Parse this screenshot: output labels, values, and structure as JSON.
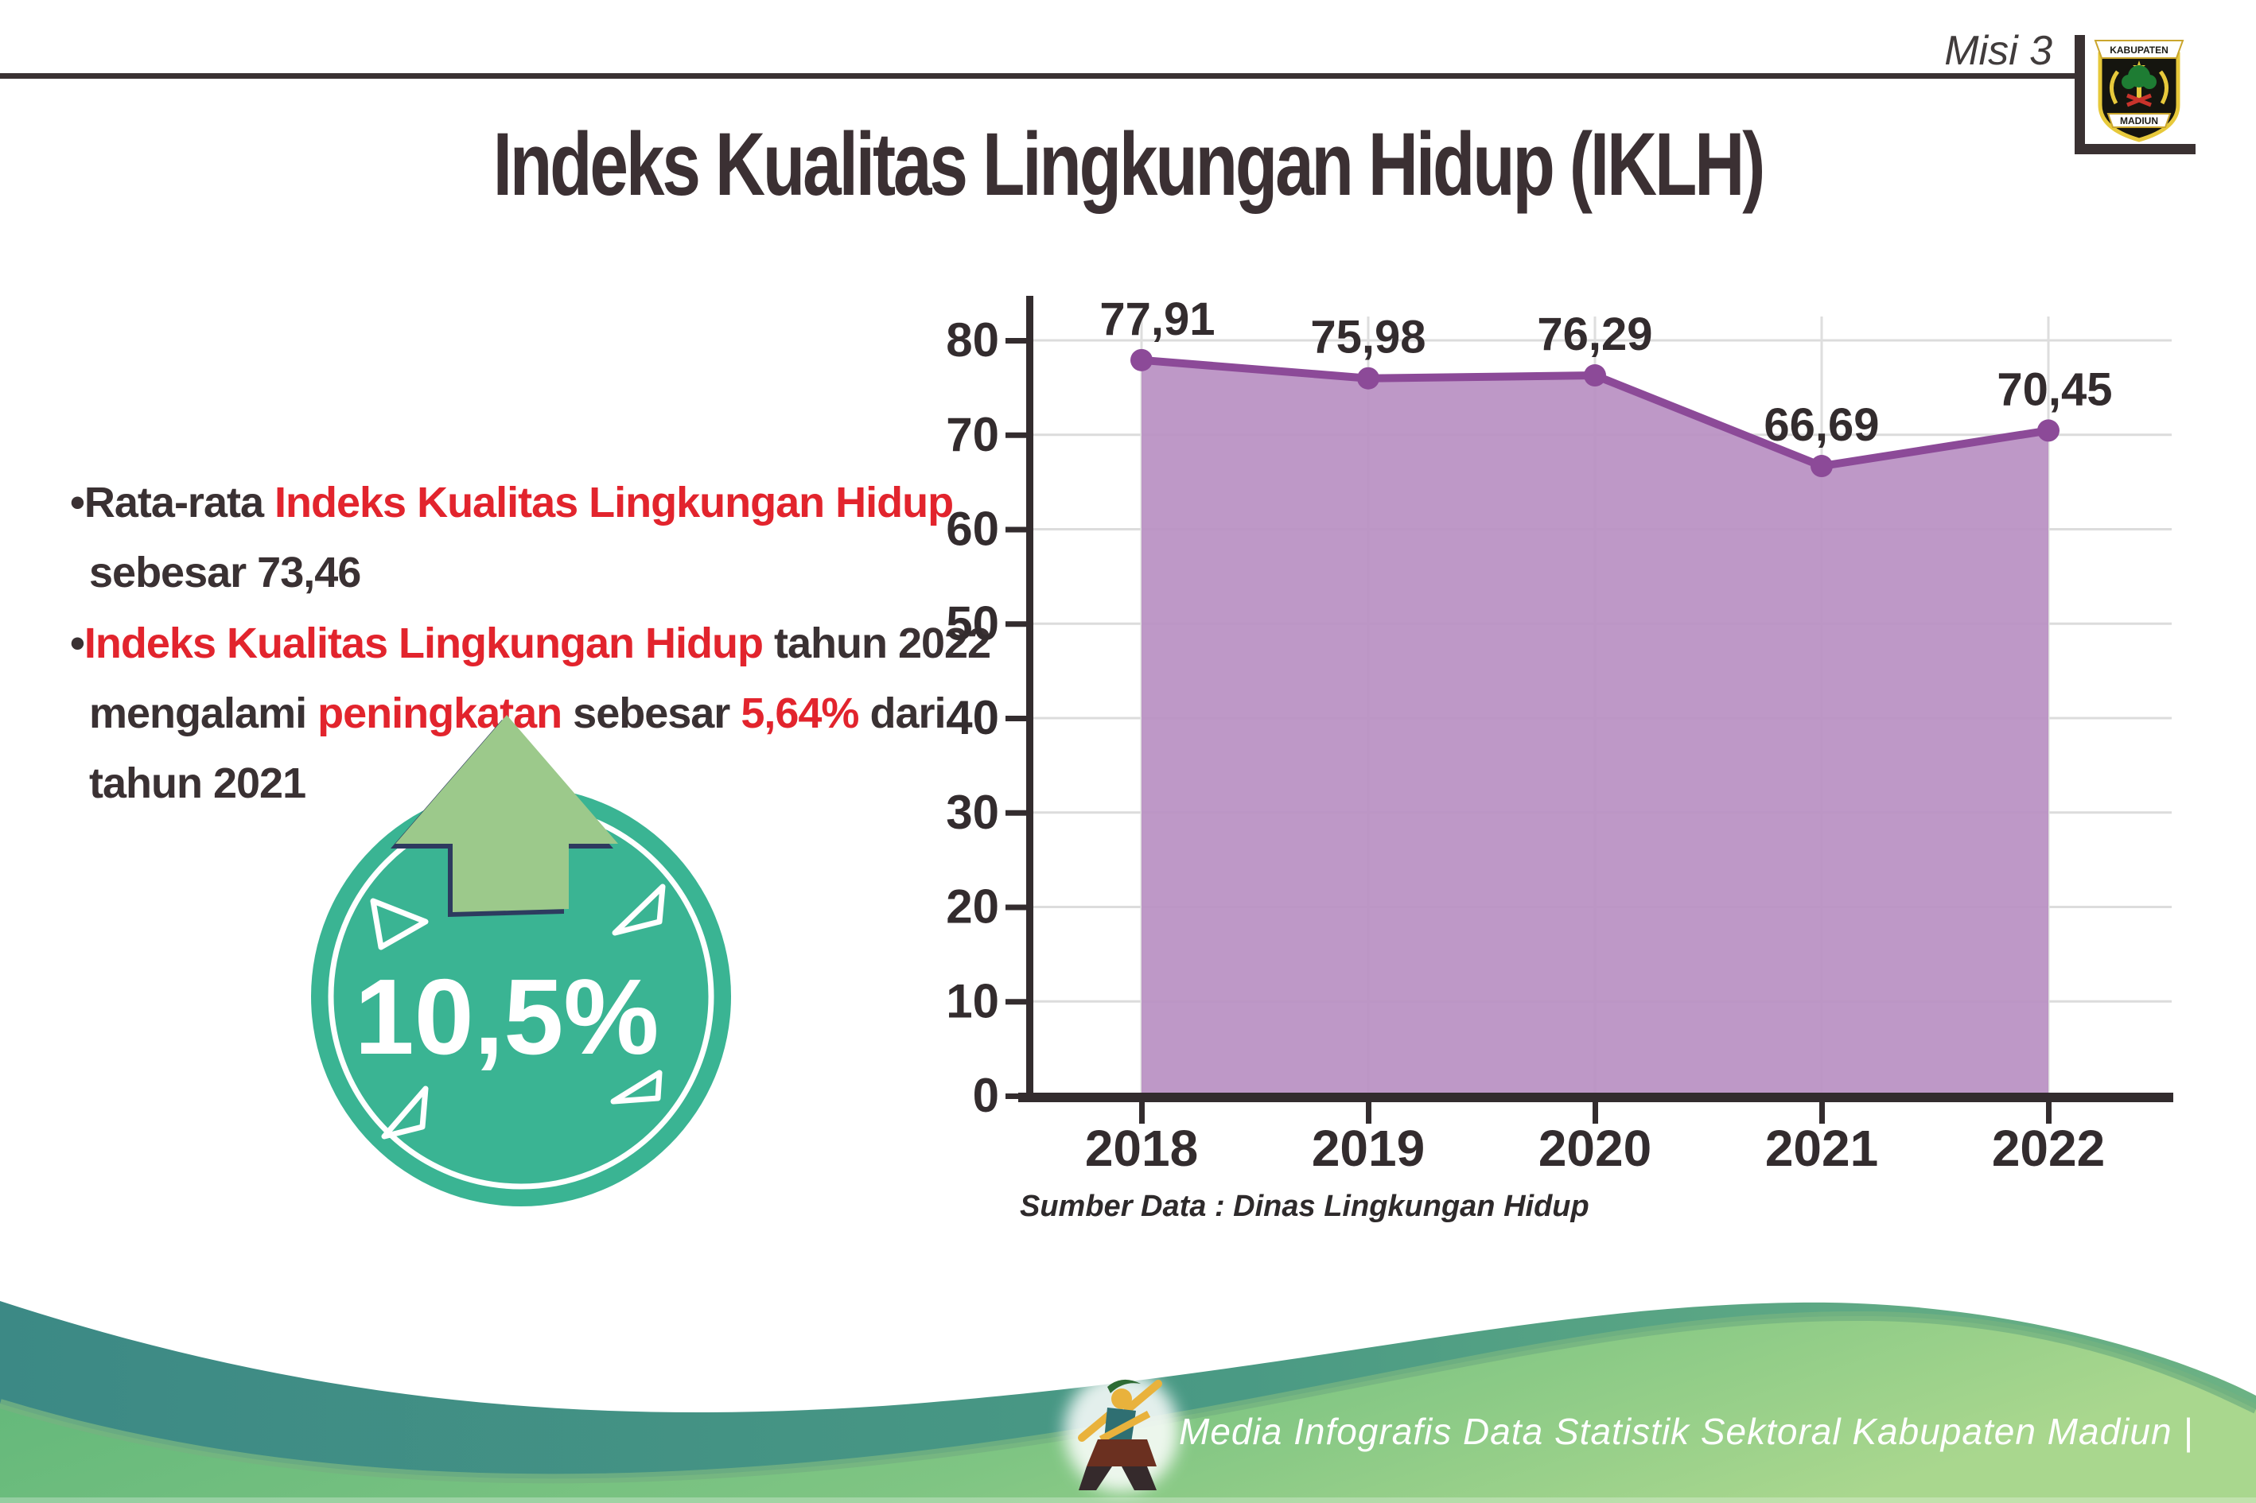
{
  "header": {
    "misi": "Misi 3",
    "logo": {
      "top": "KABUPATEN",
      "bottom": "MADIUN"
    }
  },
  "title": "Indeks Kualitas Lingkungan Hidup (IKLH)",
  "bullets": [
    {
      "bullet_char": "•",
      "lines": [
        [
          {
            "t": "Rata-rata ",
            "red": false
          },
          {
            "t": "Indeks Kualitas Lingkungan Hidup",
            "red": true
          }
        ],
        [
          {
            "t": "sebesar 73,46",
            "red": false
          }
        ]
      ]
    },
    {
      "bullet_char": "•",
      "lines": [
        [
          {
            "t": "Indeks Kualitas Lingkungan Hidup",
            "red": true
          },
          {
            "t": " tahun 2022",
            "red": false
          }
        ],
        [
          {
            "t": "mengalami ",
            "red": false
          },
          {
            "t": "peningkatan",
            "red": true
          },
          {
            "t": " sebesar ",
            "red": false
          },
          {
            "t": "5,64%",
            "red": true
          },
          {
            "t": " dari",
            "red": false
          }
        ],
        [
          {
            "t": "tahun 2021",
            "red": false
          }
        ]
      ]
    }
  ],
  "badge": {
    "value": "10,5%"
  },
  "chart_data": {
    "type": "area",
    "categories": [
      "2018",
      "2019",
      "2020",
      "2021",
      "2022"
    ],
    "values": [
      77.91,
      75.98,
      76.29,
      66.69,
      70.45
    ],
    "labels": [
      "77,91",
      "75,98",
      "76,29",
      "66,69",
      "70,45"
    ],
    "title": "",
    "xlabel": "",
    "ylabel": "",
    "ylim": [
      0,
      80
    ],
    "ytick_step": 10,
    "yticks": [
      "0",
      "10",
      "20",
      "30",
      "40",
      "50",
      "60",
      "70",
      "80"
    ],
    "grid": true,
    "legend": "none",
    "fill_color": "#b88fc2",
    "line_color": "#8c4a98",
    "source": "Sumber Data : Dinas Lingkungan Hidup"
  },
  "footer": {
    "text": "Media Infografis Data Statistik Sektoral Kabupaten Madiun |"
  },
  "colors": {
    "dark_text": "#3a3133",
    "red_text": "#e2242d",
    "badge_teal": "#3ab493",
    "arrow_green": "#9cc98b",
    "arrow_outline": "#2d3b5f",
    "footer_teal": "#3c8985",
    "footer_green_light": "#a9d78e",
    "footer_green": "#5fb679"
  }
}
